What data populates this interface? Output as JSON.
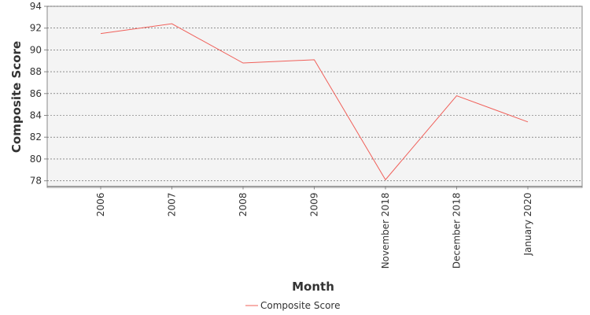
{
  "chart_data": {
    "type": "line",
    "title": "",
    "xlabel": "Month",
    "ylabel": "Composite Score",
    "categories": [
      "2006",
      "2007",
      "2008",
      "2009",
      "November 2018",
      "December 2018",
      "January 2020"
    ],
    "series": [
      {
        "name": "Composite Score",
        "color": "#f0605a",
        "values": [
          91.5,
          92.4,
          88.8,
          89.1,
          78.1,
          85.8,
          83.4
        ]
      }
    ],
    "ylim": [
      77.5,
      94
    ],
    "yticks": [
      "78",
      "80",
      "82",
      "84",
      "86",
      "88",
      "90",
      "92",
      "94"
    ],
    "grid": true,
    "legend_position": "bottom-center",
    "colors": {
      "plot_background": "#f4f4f4",
      "grid": "#555555",
      "axis": "#888888"
    }
  }
}
